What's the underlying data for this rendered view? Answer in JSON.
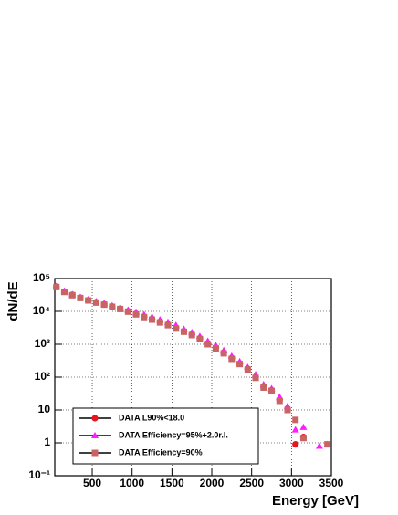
{
  "chart_data": {
    "type": "scatter",
    "x_label": "Energy [GeV]",
    "y_label": "dN/dE",
    "x": [
      50,
      150,
      250,
      350,
      450,
      550,
      650,
      750,
      850,
      950,
      1050,
      1150,
      1250,
      1350,
      1450,
      1550,
      1650,
      1750,
      1850,
      1950,
      2050,
      2150,
      2250,
      2350,
      2450,
      2550,
      2650,
      2750,
      2850,
      2950,
      3050,
      3150,
      3350,
      3450
    ],
    "series": [
      {
        "name": "DATA L90%<18.0",
        "color": "#e8141e",
        "marker": "circle",
        "values": [
          56000,
          40000,
          32000,
          26000,
          22000,
          19000,
          16500,
          14000,
          12000,
          10000,
          8300,
          6900,
          5800,
          4800,
          4000,
          3200,
          2500,
          2000,
          1500,
          1070,
          790,
          560,
          380,
          260,
          180,
          100,
          50,
          40,
          20,
          11,
          0.9,
          1.5,
          null,
          null
        ]
      },
      {
        "name": "DATA Efficiency=95%+2.0r.l.",
        "color": "#ff1cff",
        "marker": "triangle",
        "values": [
          58000,
          42000,
          33000,
          27000,
          23000,
          20000,
          17500,
          15000,
          13000,
          11000,
          9500,
          8000,
          6800,
          5600,
          4700,
          3800,
          2900,
          2300,
          1750,
          1250,
          920,
          650,
          440,
          300,
          200,
          120,
          60,
          45,
          25,
          13,
          2.5,
          3,
          0.8,
          0.9
        ]
      },
      {
        "name": "DATA Efficiency=90%",
        "color": "#c86464",
        "marker": "square",
        "values": [
          55000,
          39000,
          31000,
          25500,
          21500,
          18500,
          16000,
          13800,
          11800,
          9800,
          8100,
          6700,
          5600,
          4600,
          3800,
          3000,
          2400,
          1900,
          1450,
          1000,
          750,
          530,
          360,
          250,
          170,
          95,
          48,
          38,
          19,
          10,
          5,
          1.4,
          null,
          0.9
        ]
      }
    ],
    "xlim": [
      30,
      3500
    ],
    "xticks": [
      500,
      1000,
      1500,
      2000,
      2500,
      3000,
      3500
    ],
    "ylim": [
      0.1,
      100000
    ],
    "log_y": true,
    "grid": true,
    "legend": "bottom-left",
    "yticks": [
      {
        "value": 0.1,
        "label": "10⁻¹"
      },
      1,
      10,
      {
        "value": 100,
        "label": "10²"
      },
      {
        "value": 1000,
        "label": "10³"
      },
      {
        "value": 10000,
        "label": "10⁴"
      },
      {
        "value": 100000,
        "label": "10⁵"
      }
    ]
  }
}
